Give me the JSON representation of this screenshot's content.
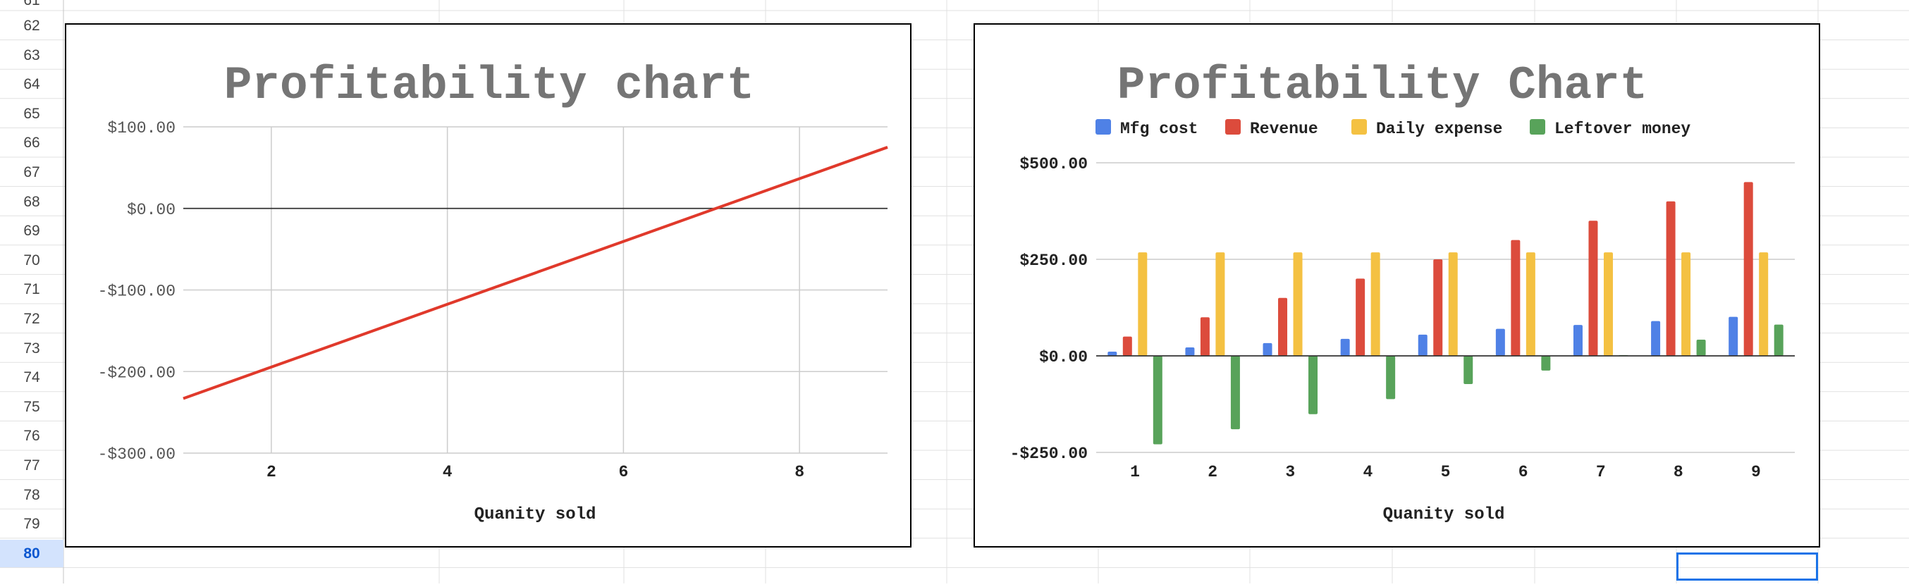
{
  "spreadsheet": {
    "row_numbers": [
      "61",
      "62",
      "63",
      "64",
      "65",
      "66",
      "67",
      "68",
      "69",
      "70",
      "71",
      "72",
      "73",
      "74",
      "75",
      "76",
      "77",
      "78",
      "79",
      "80"
    ],
    "selected_row": "80"
  },
  "chart_data": [
    {
      "type": "line",
      "title": "Profitability chart",
      "xlabel": "Quanity sold",
      "ylabel": "",
      "xlim": [
        1,
        9
      ],
      "ylim": [
        -300,
        100
      ],
      "x_ticks": [
        2,
        4,
        6,
        8
      ],
      "x_tick_labels": [
        "2",
        "4",
        "6",
        "8"
      ],
      "y_ticks": [
        100,
        0,
        -100,
        -200,
        -300
      ],
      "y_tick_labels": [
        "$100.00",
        "$0.00",
        "-$100.00",
        "-$200.00",
        "-$300.00"
      ],
      "grid": true,
      "legend": "none",
      "series": [
        {
          "color": "#e0392b",
          "x": [
            1,
            9
          ],
          "y": [
            -233,
            75
          ]
        }
      ]
    },
    {
      "type": "bar",
      "title": "Profitability Chart",
      "xlabel": "Quanity sold",
      "ylabel": "",
      "ylim": [
        -250,
        500
      ],
      "y_ticks": [
        500,
        250,
        0,
        -250
      ],
      "y_tick_labels": [
        "$500.00",
        "$250.00",
        "$0.00",
        "-$250.00"
      ],
      "grid": true,
      "legend": "top",
      "categories": [
        "1",
        "2",
        "3",
        "4",
        "5",
        "6",
        "7",
        "8",
        "9"
      ],
      "series": [
        {
          "name": "Mfg cost",
          "color": "#4f81e6",
          "values": [
            11,
            22,
            33,
            44,
            55,
            70,
            80,
            90,
            101
          ]
        },
        {
          "name": "Revenue",
          "color": "#dc4b3c",
          "values": [
            50,
            100,
            150,
            200,
            250,
            300,
            350,
            400,
            450
          ]
        },
        {
          "name": "Daily expense",
          "color": "#f4c142",
          "values": [
            268,
            268,
            268,
            268,
            268,
            268,
            268,
            268,
            268
          ]
        },
        {
          "name": "Leftover money",
          "color": "#58a35a",
          "values": [
            -229,
            -190,
            -151,
            -112,
            -73,
            -38,
            2,
            42,
            81
          ]
        }
      ]
    }
  ]
}
